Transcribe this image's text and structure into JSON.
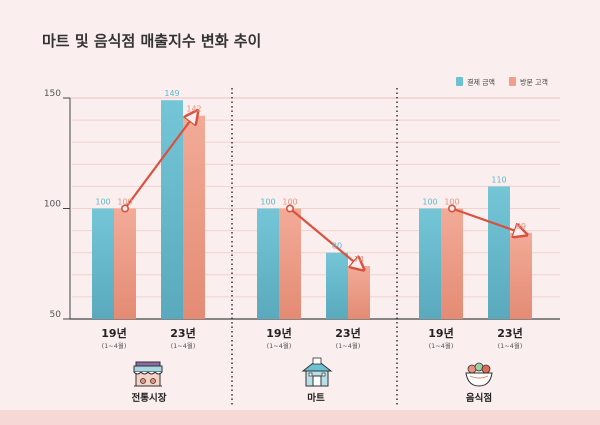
{
  "chart_data": {
    "type": "bar",
    "title": "마트 및 음식점 매출지수 변화 추이",
    "ylim": [
      50,
      150
    ],
    "yticks": [
      50,
      100,
      150
    ],
    "legend": {
      "placement": "top-right",
      "entries": [
        "결제 금액",
        "방문 고객"
      ]
    },
    "series": [
      {
        "name": "결제 금액",
        "color": "#6cc1d3"
      },
      {
        "name": "방문 고객",
        "color": "#eea08d"
      }
    ],
    "trend_color": "#d9523e",
    "groups": [
      {
        "label": "전통시장",
        "icon": "market-stall-icon",
        "points": [
          {
            "year": "19년",
            "period": "(1~4월)",
            "values": [
              100,
              100
            ]
          },
          {
            "year": "23년",
            "period": "(1~4월)",
            "values": [
              149,
              142
            ]
          }
        ]
      },
      {
        "label": "마트",
        "icon": "mart-building-icon",
        "points": [
          {
            "year": "19년",
            "period": "(1~4월)",
            "values": [
              100,
              100
            ]
          },
          {
            "year": "23년",
            "period": "(1~4월)",
            "values": [
              80,
              74
            ]
          }
        ]
      },
      {
        "label": "음식점",
        "icon": "food-bowl-icon",
        "points": [
          {
            "year": "19년",
            "period": "(1~4월)",
            "values": [
              100,
              100
            ]
          },
          {
            "year": "23년",
            "period": "(1~4월)",
            "values": [
              110,
              89
            ]
          }
        ]
      }
    ]
  }
}
